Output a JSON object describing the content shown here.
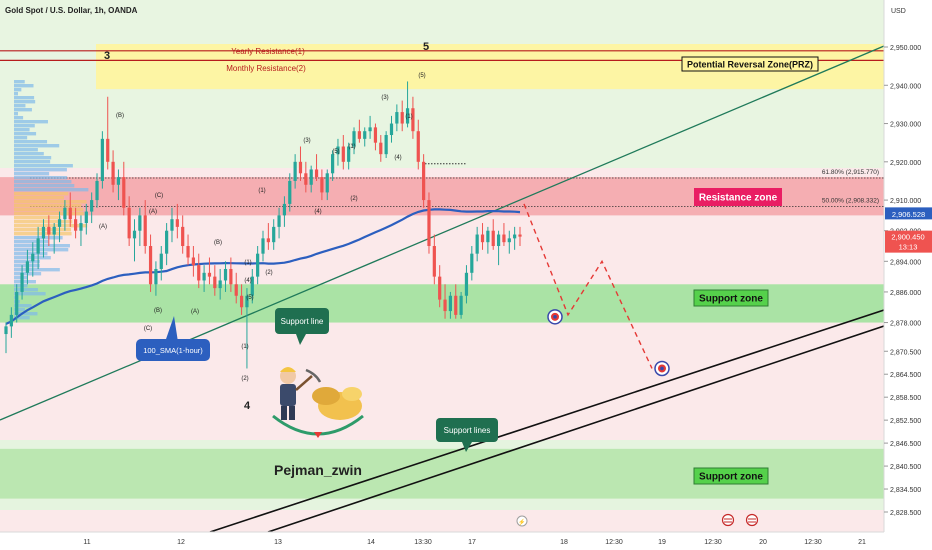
{
  "header": {
    "symbol": "Gold Spot / U.S. Dollar, 1h, OANDA",
    "currency": "USD"
  },
  "colors": {
    "bull": "#26a69a",
    "bear": "#ef5350",
    "sma": "#2c5fbf",
    "resistance": "#f3a3a8",
    "support": "#a5e3a1",
    "prz": "#fff59d",
    "accent": "#e91e63"
  },
  "chart_data": {
    "type": "candlestick",
    "price_range": [
      2824.5,
      2955
    ],
    "price_ticks": [
      2950,
      2940,
      2930,
      2920,
      2910,
      2902,
      2894,
      2886,
      2878,
      2870.5,
      2864.5,
      2858.5,
      2852.5,
      2846.5,
      2840.5,
      2834.5,
      2828.5
    ],
    "price_tick_labels": [
      "2,950.000",
      "2,940.000",
      "2,930.000",
      "2,920.000",
      "2,910.000",
      "2,902.000",
      "2,894.000",
      "2,886.000",
      "2,878.000",
      "2,870.500",
      "2,864.500",
      "2,858.500",
      "2,852.500",
      "2,846.500",
      "2,840.500",
      "2,834.500",
      "2,828.500"
    ],
    "time_labels": [
      "11",
      "12",
      "13",
      "14",
      "13:30",
      "17",
      "18",
      "12:30",
      "19",
      "12:30",
      "20",
      "12:30",
      "21"
    ],
    "current_price": "2,900.450",
    "countdown": "13:13",
    "sma_value": "2,906.528",
    "sma_name": "100_SMA(1-hour)",
    "fib_levels": [
      {
        "label": "61.80% (2,915.770)",
        "price": 2915.77
      },
      {
        "label": "50.00% (2,908.332)",
        "price": 2908.332
      }
    ],
    "zones": {
      "prz": {
        "label": "Potential Reversal Zone(PRZ)",
        "from": 2939,
        "to": 2950
      },
      "resistance": {
        "label": "Resistance zone",
        "from": 2906,
        "to": 2916
      },
      "support1": {
        "label": "Support zone",
        "from": 2878,
        "to": 2888
      },
      "support2": {
        "label": "Support zone",
        "from": 2832,
        "to": 2845
      }
    },
    "lines": {
      "yearly": {
        "label": "Yearly Resistance(1)",
        "price": 2949
      },
      "monthly": {
        "label": "Monthly Resistance(2)",
        "price": 2946.5
      },
      "support_line": "Support line",
      "support_lines": "Support lines"
    },
    "wave_labels": [
      "3",
      "5",
      "4",
      "(A)",
      "(B)",
      "(C)",
      "(1)",
      "(2)",
      "(3)",
      "(4)",
      "(5)"
    ],
    "author": "Pejman_zwin",
    "candles": [
      [
        2875.0,
        2878.0,
        2870.0,
        2877.0
      ],
      [
        2877.0,
        2882.0,
        2874.0,
        2880.0
      ],
      [
        2880.0,
        2888.0,
        2878.0,
        2886.0
      ],
      [
        2886.0,
        2893.0,
        2884.0,
        2891.0
      ],
      [
        2891.0,
        2897.0,
        2888.0,
        2894.0
      ],
      [
        2894.0,
        2899.0,
        2890.0,
        2896.0
      ],
      [
        2896.0,
        2903.0,
        2892.0,
        2900.0
      ],
      [
        2900.0,
        2905.0,
        2895.0,
        2903.0
      ],
      [
        2903.0,
        2906.0,
        2898.0,
        2901.0
      ],
      [
        2901.0,
        2904.0,
        2896.0,
        2903.0
      ],
      [
        2903.0,
        2907.0,
        2899.0,
        2905.0
      ],
      [
        2905.0,
        2910.0,
        2902.0,
        2908.0
      ],
      [
        2908.0,
        2912.0,
        2903.0,
        2905.0
      ],
      [
        2905.0,
        2908.0,
        2900.0,
        2902.0
      ],
      [
        2902.0,
        2906.0,
        2898.0,
        2904.0
      ],
      [
        2904.0,
        2909.0,
        2901.0,
        2907.0
      ],
      [
        2907.0,
        2912.0,
        2904.0,
        2910.0
      ],
      [
        2910.0,
        2917.0,
        2908.0,
        2915.0
      ],
      [
        2915.0,
        2928.0,
        2913.0,
        2926.0
      ],
      [
        2926.0,
        2937.0,
        2918.0,
        2920.0
      ],
      [
        2920.0,
        2923.0,
        2912.0,
        2914.0
      ],
      [
        2914.0,
        2918.0,
        2910.0,
        2916.0
      ],
      [
        2916.0,
        2920.0,
        2906.0,
        2908.0
      ],
      [
        2908.0,
        2911.0,
        2898.0,
        2900.0
      ],
      [
        2900.0,
        2905.0,
        2894.0,
        2902.0
      ],
      [
        2902.0,
        2908.0,
        2898.0,
        2906.0
      ],
      [
        2906.0,
        2910.0,
        2896.0,
        2898.0
      ],
      [
        2898.0,
        2901.0,
        2886.0,
        2888.0
      ],
      [
        2888.0,
        2894.0,
        2885.0,
        2892.0
      ],
      [
        2892.0,
        2898.0,
        2889.0,
        2896.0
      ],
      [
        2896.0,
        2904.0,
        2893.0,
        2902.0
      ],
      [
        2902.0,
        2908.0,
        2899.0,
        2905.0
      ],
      [
        2905.0,
        2909.0,
        2900.0,
        2903.0
      ],
      [
        2903.0,
        2906.0,
        2896.0,
        2898.0
      ],
      [
        2898.0,
        2901.0,
        2893.0,
        2895.0
      ],
      [
        2895.0,
        2898.0,
        2890.0,
        2893.0
      ],
      [
        2893.0,
        2896.0,
        2887.0,
        2889.0
      ],
      [
        2889.0,
        2893.0,
        2886.0,
        2891.0
      ],
      [
        2891.0,
        2895.0,
        2888.0,
        2890.0
      ],
      [
        2890.0,
        2893.0,
        2885.0,
        2887.0
      ],
      [
        2887.0,
        2892.0,
        2884.0,
        2889.0
      ],
      [
        2889.0,
        2894.0,
        2886.0,
        2892.0
      ],
      [
        2892.0,
        2895.0,
        2886.0,
        2888.0
      ],
      [
        2888.0,
        2891.0,
        2883.0,
        2885.0
      ],
      [
        2885.0,
        2888.0,
        2880.0,
        2882.0
      ],
      [
        2882.0,
        2887.0,
        2866.0,
        2885.0
      ],
      [
        2885.0,
        2892.0,
        2883.0,
        2890.0
      ],
      [
        2890.0,
        2898.0,
        2888.0,
        2896.0
      ],
      [
        2896.0,
        2902.0,
        2894.0,
        2900.0
      ],
      [
        2900.0,
        2904.0,
        2897.0,
        2899.0
      ],
      [
        2899.0,
        2905.0,
        2897.0,
        2903.0
      ],
      [
        2903.0,
        2908.0,
        2900.0,
        2906.0
      ],
      [
        2906.0,
        2911.0,
        2903.0,
        2909.0
      ],
      [
        2909.0,
        2917.0,
        2907.0,
        2915.0
      ],
      [
        2915.0,
        2922.0,
        2913.0,
        2920.0
      ],
      [
        2920.0,
        2924.0,
        2915.0,
        2917.0
      ],
      [
        2917.0,
        2920.0,
        2912.0,
        2914.0
      ],
      [
        2914.0,
        2919.0,
        2912.0,
        2918.0
      ],
      [
        2918.0,
        2922.0,
        2915.0,
        2916.0
      ],
      [
        2916.0,
        2918.0,
        2910.0,
        2912.0
      ],
      [
        2912.0,
        2918.0,
        2910.0,
        2917.0
      ],
      [
        2917.0,
        2923.0,
        2915.0,
        2922.0
      ],
      [
        2922.0,
        2926.0,
        2919.0,
        2924.0
      ],
      [
        2924.0,
        2927.0,
        2918.0,
        2920.0
      ],
      [
        2920.0,
        2925.0,
        2918.0,
        2924.0
      ],
      [
        2924.0,
        2929.0,
        2922.0,
        2928.0
      ],
      [
        2928.0,
        2931.0,
        2925.0,
        2926.0
      ],
      [
        2926.0,
        2929.0,
        2924.0,
        2928.0
      ],
      [
        2928.0,
        2932.0,
        2926.0,
        2929.0
      ],
      [
        2929.0,
        2930.0,
        2923.0,
        2925.0
      ],
      [
        2925.0,
        2927.0,
        2920.0,
        2922.0
      ],
      [
        2922.0,
        2928.0,
        2921.0,
        2927.0
      ],
      [
        2927.0,
        2932.0,
        2925.0,
        2930.0
      ],
      [
        2930.0,
        2935.0,
        2928.0,
        2933.0
      ],
      [
        2933.0,
        2936.0,
        2928.0,
        2930.0
      ],
      [
        2930.0,
        2941.0,
        2929.0,
        2934.0
      ],
      [
        2934.0,
        2937.0,
        2926.0,
        2928.0
      ],
      [
        2928.0,
        2931.0,
        2918.0,
        2920.0
      ],
      [
        2920.0,
        2922.0,
        2908.0,
        2910.0
      ],
      [
        2910.0,
        2912.0,
        2896.0,
        2898.0
      ],
      [
        2898.0,
        2901.0,
        2888.0,
        2890.0
      ],
      [
        2890.0,
        2893.0,
        2882.0,
        2884.0
      ],
      [
        2884.0,
        2888.0,
        2879.0,
        2881.0
      ],
      [
        2881.0,
        2886.0,
        2879.0,
        2885.0
      ],
      [
        2885.0,
        2888.0,
        2879.0,
        2880.0
      ],
      [
        2880.0,
        2886.0,
        2879.0,
        2885.0
      ],
      [
        2885.0,
        2893.0,
        2883.0,
        2891.0
      ],
      [
        2891.0,
        2898.0,
        2889.0,
        2896.0
      ],
      [
        2896.0,
        2903.0,
        2894.0,
        2901.0
      ],
      [
        2901.0,
        2904.0,
        2897.0,
        2899.0
      ],
      [
        2899.0,
        2903.0,
        2896.0,
        2902.0
      ],
      [
        2902.0,
        2905.0,
        2897.0,
        2898.0
      ],
      [
        2898.0,
        2902.0,
        2893.0,
        2901.0
      ],
      [
        2901.0,
        2904.0,
        2898.0,
        2899.0
      ],
      [
        2899.0,
        2902.0,
        2896.0,
        2900.0
      ],
      [
        2900.0,
        2903.0,
        2897.0,
        2901.0
      ],
      [
        2901.0,
        2903.0,
        2898.0,
        2900.45
      ]
    ]
  }
}
